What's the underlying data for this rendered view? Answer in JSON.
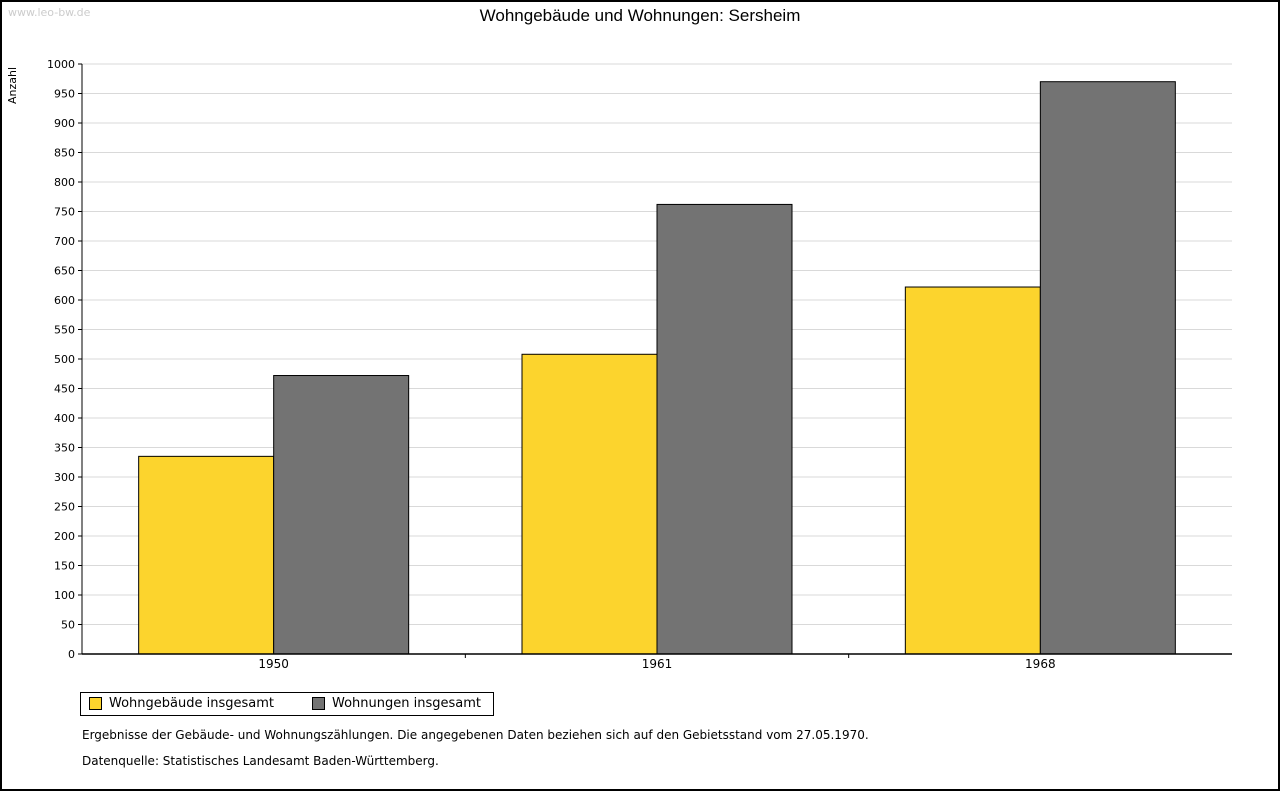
{
  "page": {
    "watermark": "www.leo-bw.de"
  },
  "footnotes": {
    "line1": "Ergebnisse der Gebäude- und Wohnungszählungen. Die angegebenen Daten beziehen sich auf den Gebietsstand vom 27.05.1970.",
    "line2": "Datenquelle: Statistisches Landesamt Baden-Württemberg."
  },
  "chart_data": {
    "type": "bar",
    "title": "Wohngebäude und Wohnungen: Sersheim",
    "xlabel": "",
    "ylabel": "Anzahl",
    "categories": [
      "1950",
      "1961",
      "1968"
    ],
    "series": [
      {
        "name": "Wohngebäude insgesamt",
        "color": "#fcd42d",
        "values": [
          335,
          508,
          622
        ]
      },
      {
        "name": "Wohnungen insgesamt",
        "color": "#737373",
        "values": [
          472,
          762,
          970
        ]
      }
    ],
    "ylim": [
      0,
      1000
    ],
    "ytick_step": 50,
    "grid": true,
    "legend_position": "bottom-left",
    "colors": {
      "axis": "#000000",
      "gridline": "#d9d9d9",
      "bar_border": "#000000"
    }
  }
}
